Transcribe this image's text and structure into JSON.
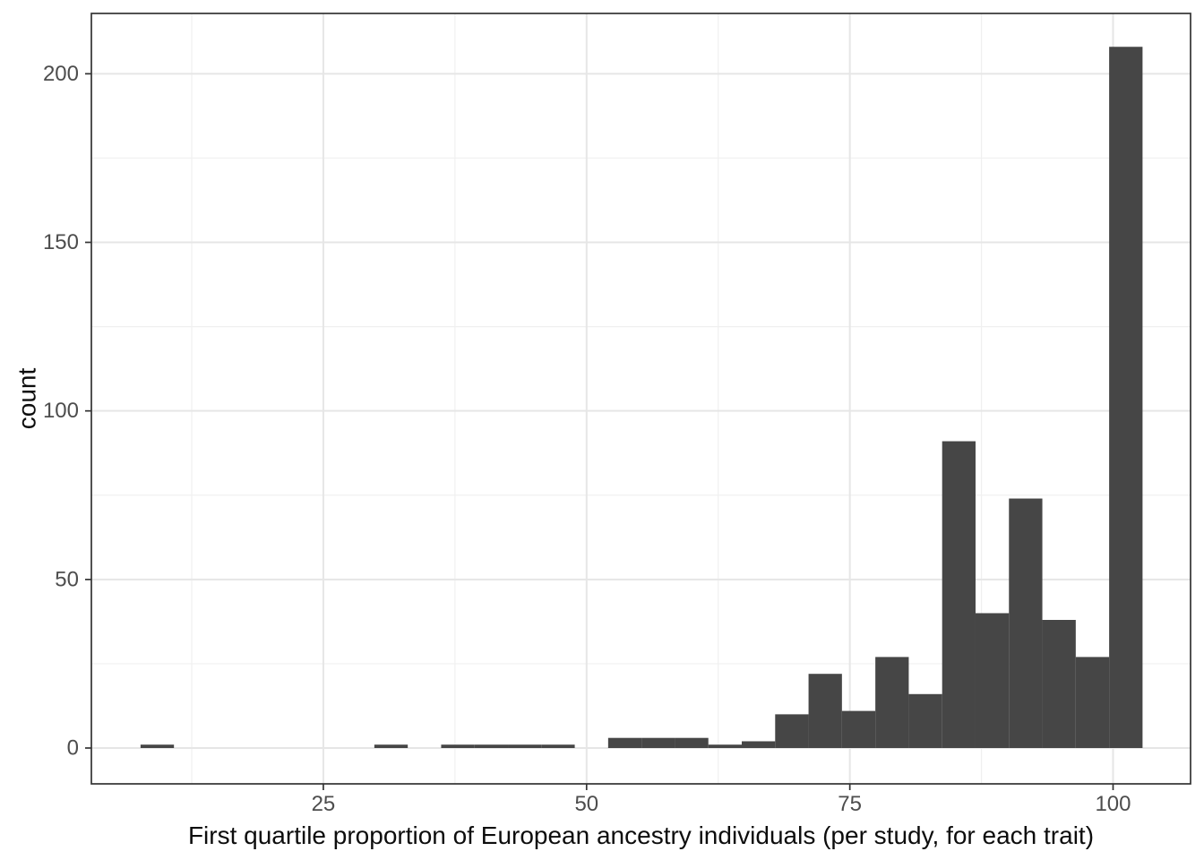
{
  "figure": {
    "xlabel": "First quartile proportion of European ancestry individuals (per study, for each trait)",
    "ylabel": "count"
  },
  "chart_data": {
    "type": "bar",
    "subtype": "histogram",
    "title": "",
    "xlabel": "First quartile proportion of European ancestry individuals (per study, for each trait)",
    "ylabel": "count",
    "bin_start": 7.64,
    "bin_width": 3.172,
    "counts": [
      1,
      0,
      0,
      0,
      0,
      0,
      0,
      1,
      0,
      1,
      1,
      1,
      1,
      0,
      3,
      3,
      3,
      1,
      2,
      10,
      22,
      11,
      27,
      16,
      91,
      40,
      74,
      38,
      27,
      208
    ],
    "x_ticks": [
      25,
      50,
      75,
      100
    ],
    "x_minor_ticks": [
      12.5,
      37.5,
      62.5,
      87.5
    ],
    "y_ticks": [
      0,
      50,
      100,
      150,
      200
    ],
    "y_minor_ticks": [
      25,
      75,
      125,
      175
    ],
    "xlim": [
      2.97,
      107.36
    ],
    "ylim": [
      -10.63,
      217.9
    ],
    "grid": true,
    "legend": false
  },
  "colors": {
    "background": "#ffffff",
    "bar_fill": "#464646",
    "grid_major": "#e6e6e6",
    "grid_minor": "#f0f0f0",
    "panel_border": "#333333",
    "tick_mark": "#333333",
    "tick_label": "#4d4d4d",
    "axis_title": "#0d0d0d"
  }
}
